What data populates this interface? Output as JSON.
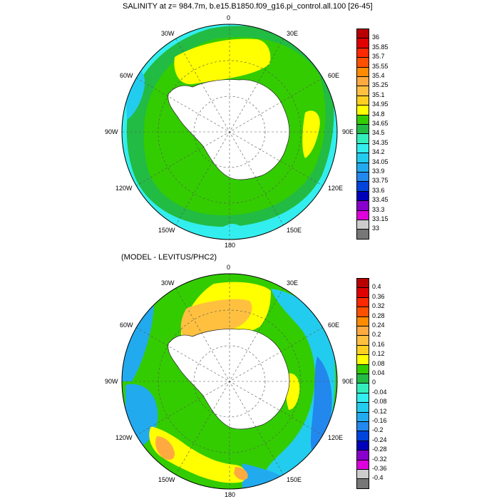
{
  "titles": {
    "top": "SALINITY at z= 984.7m, b.e15.B1850.f09_g16.pi_control.all.100 [26-45]",
    "bottom": "(MODEL - LEVITUS/PHC2)"
  },
  "lon_labels": [
    "0",
    "30E",
    "60E",
    "90E",
    "120E",
    "150E",
    "180",
    "150W",
    "120W",
    "90W",
    "60W",
    "30W"
  ],
  "colorbar_top": {
    "labels": [
      "36",
      "35.85",
      "35.7",
      "35.55",
      "35.4",
      "35.25",
      "35.1",
      "34.95",
      "34.8",
      "34.65",
      "34.5",
      "34.35",
      "34.2",
      "34.05",
      "33.9",
      "33.75",
      "33.6",
      "33.45",
      "33.3",
      "33.15",
      "33"
    ],
    "colors": [
      "#b80000",
      "#e00000",
      "#ff2800",
      "#ff5000",
      "#ff8c00",
      "#ffaa40",
      "#ffc040",
      "#ffd020",
      "#ffff00",
      "#33cc00",
      "#22bb44",
      "#33eebb",
      "#33eeee",
      "#22ccee",
      "#22aaee",
      "#2288ee",
      "#0044dd",
      "#0000bb",
      "#8800cc",
      "#dd00dd",
      "#cccccc",
      "#777777"
    ]
  },
  "colorbar_bottom": {
    "labels": [
      "0.4",
      "0.36",
      "0.32",
      "0.28",
      "0.24",
      "0.2",
      "0.16",
      "0.12",
      "0.08",
      "0.04",
      "0",
      "-0.04",
      "-0.08",
      "-0.12",
      "-0.16",
      "-0.2",
      "-0.24",
      "-0.28",
      "-0.32",
      "-0.36",
      "-0.4"
    ],
    "colors": [
      "#b80000",
      "#e00000",
      "#ff2800",
      "#ff5000",
      "#ff8c00",
      "#ffaa40",
      "#ffc040",
      "#ffd020",
      "#ffff00",
      "#33cc00",
      "#22bb44",
      "#33eebb",
      "#33eeee",
      "#22ccee",
      "#22aaee",
      "#2288ee",
      "#0044dd",
      "#0000bb",
      "#8800cc",
      "#dd00dd",
      "#cccccc",
      "#777777"
    ]
  }
}
